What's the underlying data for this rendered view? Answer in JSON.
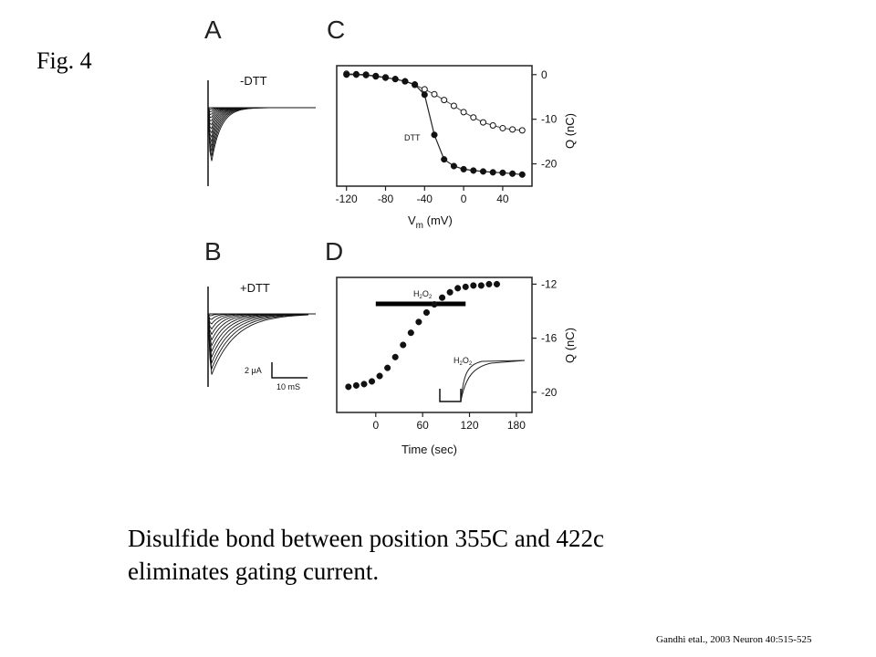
{
  "figure_label": "Fig. 4",
  "caption": {
    "line1": "Disulfide bond between position 355C and 422c",
    "line2": "eliminates gating current."
  },
  "citation": "Gandhi etal., 2003 Neuron 40:515-525",
  "panels": {
    "A": {
      "letter": "A",
      "label": "-DTT"
    },
    "B": {
      "letter": "B",
      "label": "+DTT",
      "scale_current": "2 μA",
      "scale_time": "10 mS"
    },
    "C": {
      "letter": "C"
    },
    "D": {
      "letter": "D"
    }
  },
  "chart_data": [
    {
      "panel": "C",
      "type": "scatter",
      "xlabel_main": "V",
      "xlabel_sub": "m",
      "xlabel_unit": " (mV)",
      "ylabel": "Q (nC)",
      "xlim": [
        -130,
        70
      ],
      "ylim": [
        -25,
        2
      ],
      "x_ticks": [
        -120,
        -80,
        -40,
        0,
        40
      ],
      "y_ticks": [
        0,
        -10,
        -20
      ],
      "annotation": "DTT",
      "series": [
        {
          "marker": "open-circle",
          "x": [
            -120,
            -110,
            -100,
            -90,
            -80,
            -70,
            -60,
            -50,
            -40,
            -30,
            -20,
            -10,
            0,
            10,
            20,
            30,
            40,
            50,
            60
          ],
          "y": [
            0.2,
            0.1,
            0,
            -0.3,
            -0.6,
            -1.0,
            -1.5,
            -2.3,
            -3.3,
            -4.4,
            -5.7,
            -7.0,
            -8.4,
            -9.6,
            -10.7,
            -11.4,
            -12.0,
            -12.3,
            -12.5
          ]
        },
        {
          "marker": "filled-circle",
          "x": [
            -120,
            -110,
            -100,
            -90,
            -80,
            -70,
            -60,
            -50,
            -40,
            -30,
            -20,
            -10,
            0,
            10,
            20,
            30,
            40,
            50,
            60
          ],
          "y": [
            0,
            0,
            -0.1,
            -0.4,
            -0.7,
            -1.0,
            -1.5,
            -2.2,
            -4.5,
            -13.5,
            -19.0,
            -20.5,
            -21.2,
            -21.5,
            -21.7,
            -21.9,
            -22.0,
            -22.2,
            -22.4
          ]
        }
      ]
    },
    {
      "panel": "D",
      "type": "scatter",
      "xlabel": "Time (sec)",
      "ylabel": "Q (nC)",
      "xlim": [
        -50,
        200
      ],
      "ylim": [
        -21.5,
        -11.5
      ],
      "x_ticks": [
        0,
        60,
        120,
        180
      ],
      "y_ticks": [
        -12,
        -16,
        -20
      ],
      "bar_label": "H2O2",
      "bar_range": [
        0,
        115
      ],
      "series": [
        {
          "marker": "filled-circle",
          "x": [
            -35,
            -25,
            -15,
            -5,
            5,
            15,
            25,
            35,
            45,
            55,
            65,
            75,
            85,
            95,
            105,
            115,
            125,
            135,
            145,
            155
          ],
          "y": [
            -19.6,
            -19.5,
            -19.4,
            -19.2,
            -18.8,
            -18.2,
            -17.4,
            -16.5,
            -15.6,
            -14.8,
            -14.1,
            -13.5,
            -13.0,
            -12.6,
            -12.3,
            -12.2,
            -12.1,
            -12.1,
            -12.0,
            -12.0
          ]
        }
      ],
      "inset_label": "H2O2"
    }
  ]
}
